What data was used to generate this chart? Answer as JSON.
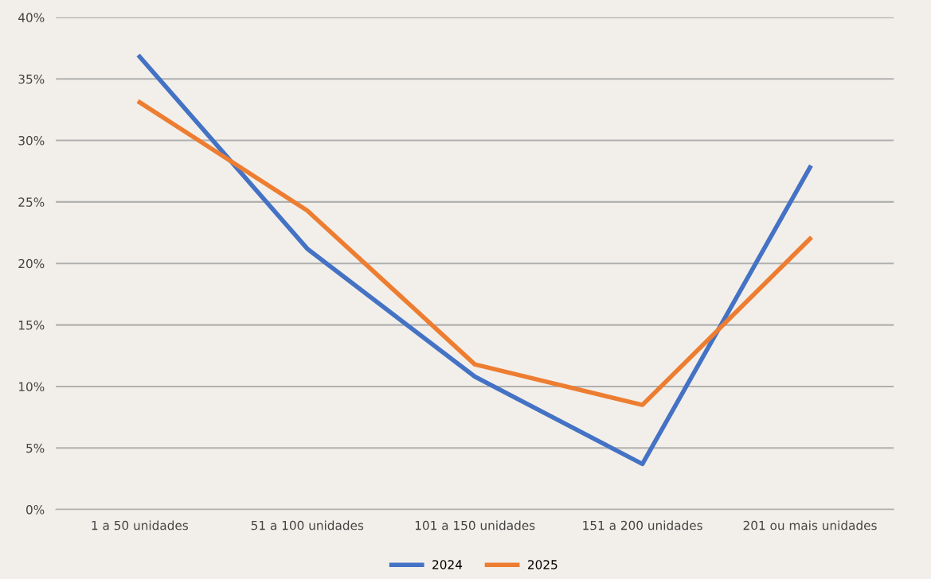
{
  "chart_data": {
    "type": "line",
    "categories": [
      "1 a 50 unidades",
      "51 a 100 unidades",
      "101 a 150 unidades",
      "151 a 200 unidades",
      "201 ou mais unidades"
    ],
    "series": [
      {
        "name": "2024",
        "color": "#4472c4",
        "values": [
          36.8,
          21.2,
          10.8,
          3.7,
          27.8
        ]
      },
      {
        "name": "2025",
        "color": "#ed7d31",
        "values": [
          33.1,
          24.3,
          11.8,
          8.5,
          22.0
        ]
      }
    ],
    "ylim": [
      0,
      40
    ],
    "yticks": [
      {
        "value": 0,
        "label": "0%"
      },
      {
        "value": 5,
        "label": "5%"
      },
      {
        "value": 10,
        "label": "10%"
      },
      {
        "value": 15,
        "label": "15%"
      },
      {
        "value": 20,
        "label": "20%"
      },
      {
        "value": 25,
        "label": "25%"
      },
      {
        "value": 30,
        "label": "30%"
      },
      {
        "value": 35,
        "label": "35%"
      },
      {
        "value": 40,
        "label": "40%"
      }
    ],
    "grid": "y",
    "legend": "bottom",
    "marker": "none",
    "line_style": "solid"
  }
}
